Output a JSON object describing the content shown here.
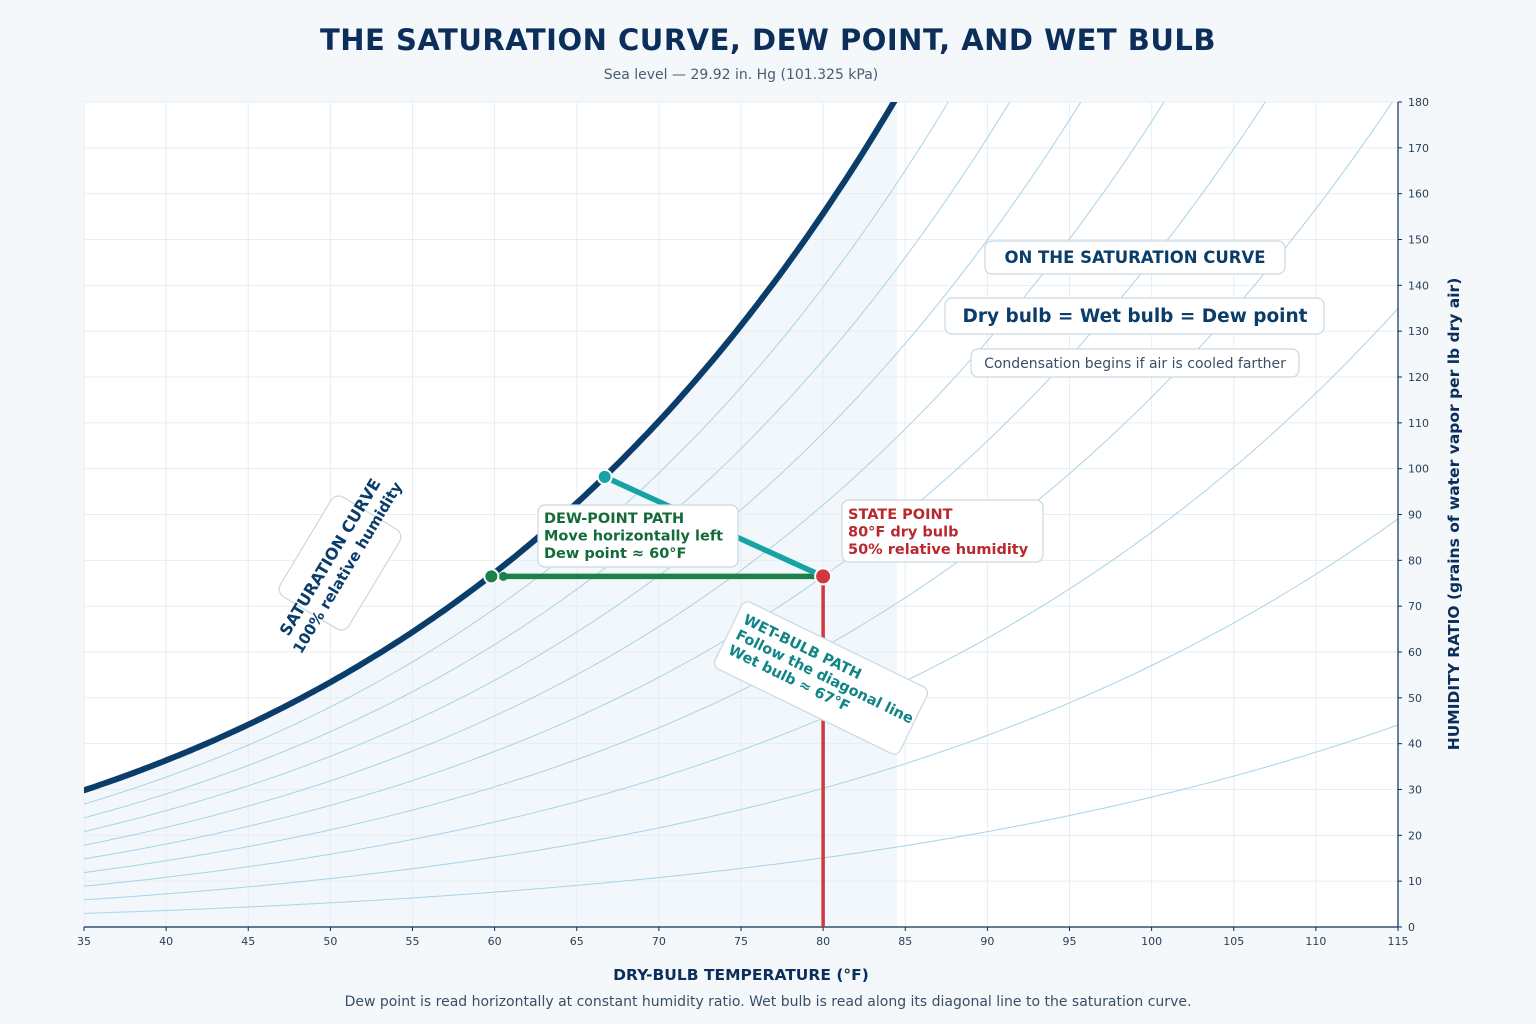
{
  "chart_data": {
    "type": "line",
    "title": "THE SATURATION CURVE, DEW POINT, AND WET BULB",
    "subtitle": "Sea level — 29.92 in. Hg (101.325 kPa)",
    "xlabel": "DRY-BULB TEMPERATURE (°F)",
    "ylabel": "HUMIDITY RATIO (grains of water vapor per lb dry air)",
    "caption": "Dew point is read horizontally at constant humidity ratio. Wet bulb is read along its diagonal line to the saturation curve.",
    "xlim": [
      35,
      115
    ],
    "ylim": [
      0,
      180
    ],
    "x_ticks": [
      35,
      40,
      45,
      50,
      55,
      60,
      65,
      70,
      75,
      80,
      85,
      90,
      95,
      100,
      105,
      110,
      115
    ],
    "y_ticks": [
      0,
      10,
      20,
      30,
      40,
      50,
      60,
      70,
      80,
      90,
      100,
      110,
      120,
      130,
      140,
      150,
      160,
      170,
      180
    ],
    "y_axis_side": "right",
    "grid": true,
    "pressure_inHg": 29.92,
    "saturation_curve_label": [
      "SATURATION CURVE",
      "100% relative humidity"
    ],
    "relative_humidity_lines_percent": [
      10,
      20,
      30,
      40,
      50,
      60,
      70,
      80,
      90
    ],
    "state_point": {
      "dry_bulb_F": 80,
      "humidity_ratio_grains": 76.5,
      "lines": [
        "STATE POINT",
        "80°F dry bulb",
        "50% relative humidity"
      ]
    },
    "dew_point": {
      "dry_bulb_F": 59.8,
      "humidity_ratio_grains": 76.5,
      "lines": [
        "DEW-POINT PATH",
        "Move horizontally left",
        "Dew point ≈ 60°F"
      ]
    },
    "wet_bulb": {
      "dry_bulb_F": 66.7,
      "humidity_ratio_grains": 98.2,
      "lines": [
        "WET-BULB PATH",
        "Follow the diagonal line",
        "Wet bulb ≈ 67°F"
      ]
    },
    "saturation_note": {
      "heading": "ON THE SATURATION CURVE",
      "equation": "Dry bulb = Wet bulb = Dew point",
      "note": "Condensation begins if air is cooled farther"
    },
    "colors": {
      "saturation": "#0b3d6b",
      "rh_lines": "#a9d3e6",
      "state": "#d0393e",
      "dew": "#1c8048",
      "wet": "#17a3a3",
      "state_text": "#b8282c",
      "dew_text": "#146b3a",
      "wet_text": "#108585",
      "shade": "#f1f7fb"
    }
  }
}
